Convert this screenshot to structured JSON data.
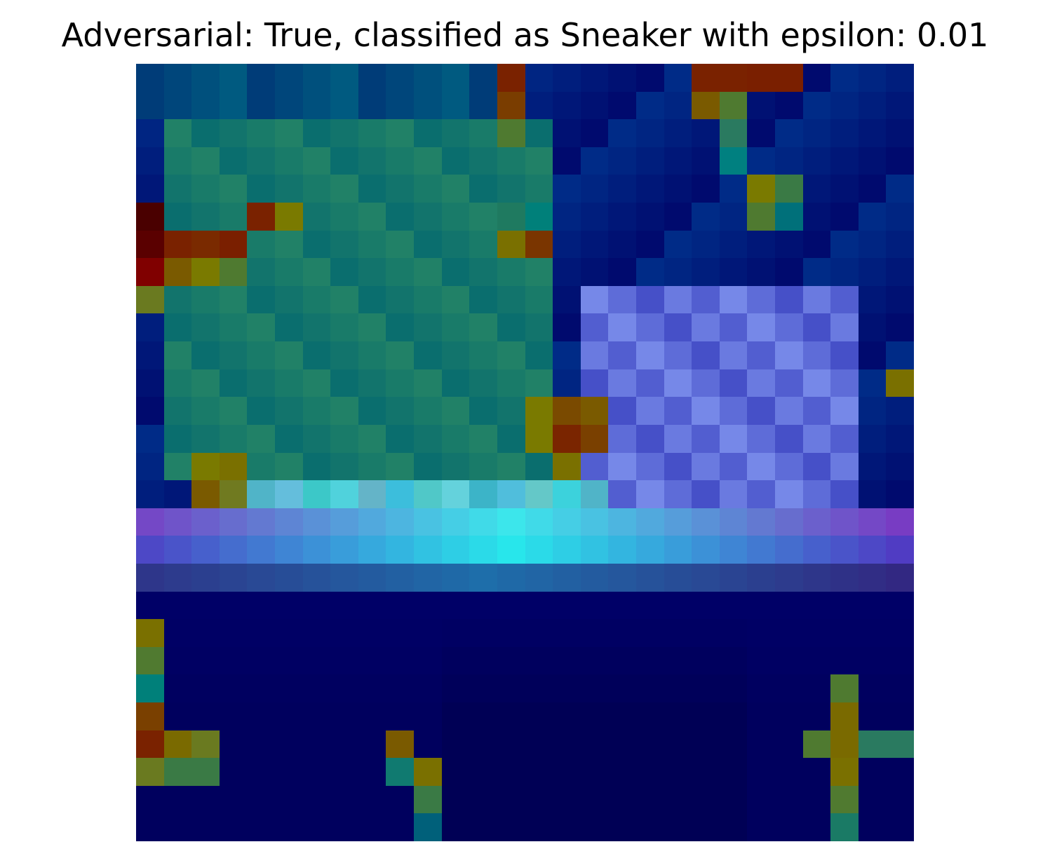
{
  "title": "Adversarial: True, classified as Sneaker with epsilon: 0.01",
  "image": {
    "rows": 28,
    "cols": 28,
    "colormap": "jet-overlay",
    "base_color": "#000a80",
    "hot_cells": [
      {
        "r": 0,
        "c": 13,
        "color": "#7a2200"
      },
      {
        "r": 0,
        "c": 20,
        "color": "#7a2200"
      },
      {
        "r": 0,
        "c": 21,
        "color": "#7a2200"
      },
      {
        "r": 0,
        "c": 22,
        "color": "#7a1f00"
      },
      {
        "r": 0,
        "c": 23,
        "color": "#7a1f00"
      },
      {
        "r": 1,
        "c": 13,
        "color": "#7a3d00"
      },
      {
        "r": 1,
        "c": 20,
        "color": "#7a5a00"
      },
      {
        "r": 1,
        "c": 21,
        "color": "#4f7a30"
      },
      {
        "r": 2,
        "c": 13,
        "color": "#4f7a30"
      },
      {
        "r": 2,
        "c": 21,
        "color": "#2a7a60"
      },
      {
        "r": 3,
        "c": 21,
        "color": "#008080"
      },
      {
        "r": 4,
        "c": 22,
        "color": "#7a7a00"
      },
      {
        "r": 4,
        "c": 23,
        "color": "#3a7a45"
      },
      {
        "r": 5,
        "c": 0,
        "color": "#4a0000"
      },
      {
        "r": 5,
        "c": 4,
        "color": "#7a2200"
      },
      {
        "r": 5,
        "c": 5,
        "color": "#7a7a00"
      },
      {
        "r": 5,
        "c": 13,
        "color": "#1f7a60"
      },
      {
        "r": 5,
        "c": 14,
        "color": "#00807a"
      },
      {
        "r": 5,
        "c": 22,
        "color": "#4f7a30"
      },
      {
        "r": 5,
        "c": 23,
        "color": "#00707a"
      },
      {
        "r": 6,
        "c": 0,
        "color": "#5a0000"
      },
      {
        "r": 6,
        "c": 1,
        "color": "#7a2200"
      },
      {
        "r": 6,
        "c": 2,
        "color": "#7a2a00"
      },
      {
        "r": 6,
        "c": 3,
        "color": "#7a1f00"
      },
      {
        "r": 6,
        "c": 13,
        "color": "#7a7000"
      },
      {
        "r": 6,
        "c": 14,
        "color": "#7a3500"
      },
      {
        "r": 7,
        "c": 0,
        "color": "#800000"
      },
      {
        "r": 7,
        "c": 1,
        "color": "#7a5a00"
      },
      {
        "r": 7,
        "c": 2,
        "color": "#7a7a00"
      },
      {
        "r": 7,
        "c": 3,
        "color": "#4f7a30"
      },
      {
        "r": 8,
        "c": 0,
        "color": "#6a7a20"
      },
      {
        "r": 11,
        "c": 27,
        "color": "#7a7000"
      },
      {
        "r": 12,
        "c": 14,
        "color": "#7a7a00"
      },
      {
        "r": 12,
        "c": 15,
        "color": "#7a4a00"
      },
      {
        "r": 12,
        "c": 16,
        "color": "#7a5a00"
      },
      {
        "r": 13,
        "c": 14,
        "color": "#7a7a00"
      },
      {
        "r": 13,
        "c": 15,
        "color": "#7a2500"
      },
      {
        "r": 13,
        "c": 16,
        "color": "#7a4000"
      },
      {
        "r": 14,
        "c": 2,
        "color": "#7a7a00"
      },
      {
        "r": 14,
        "c": 3,
        "color": "#7a7000"
      },
      {
        "r": 14,
        "c": 15,
        "color": "#7a7000"
      },
      {
        "r": 15,
        "c": 2,
        "color": "#7a5a00"
      },
      {
        "r": 15,
        "c": 3,
        "color": "#707a20"
      },
      {
        "r": 20,
        "c": 0,
        "color": "#7a7000"
      },
      {
        "r": 21,
        "c": 0,
        "color": "#507a30"
      },
      {
        "r": 22,
        "c": 0,
        "color": "#00807a"
      },
      {
        "r": 22,
        "c": 25,
        "color": "#4f7a30"
      },
      {
        "r": 23,
        "c": 0,
        "color": "#7a4000"
      },
      {
        "r": 23,
        "c": 25,
        "color": "#7a6a00"
      },
      {
        "r": 24,
        "c": 0,
        "color": "#7a2200"
      },
      {
        "r": 24,
        "c": 1,
        "color": "#7a6a00"
      },
      {
        "r": 24,
        "c": 2,
        "color": "#6a7a20"
      },
      {
        "r": 24,
        "c": 9,
        "color": "#7a5a00"
      },
      {
        "r": 24,
        "c": 24,
        "color": "#4f7a30"
      },
      {
        "r": 24,
        "c": 25,
        "color": "#7a6a00"
      },
      {
        "r": 24,
        "c": 26,
        "color": "#2a7a60"
      },
      {
        "r": 24,
        "c": 27,
        "color": "#2a7a60"
      },
      {
        "r": 25,
        "c": 0,
        "color": "#6a7a20"
      },
      {
        "r": 25,
        "c": 1,
        "color": "#3a7a45"
      },
      {
        "r": 25,
        "c": 2,
        "color": "#3a7a45"
      },
      {
        "r": 25,
        "c": 9,
        "color": "#107a70"
      },
      {
        "r": 25,
        "c": 10,
        "color": "#7a7000"
      },
      {
        "r": 25,
        "c": 25,
        "color": "#7a7000"
      },
      {
        "r": 26,
        "c": 10,
        "color": "#3a7a45"
      },
      {
        "r": 26,
        "c": 25,
        "color": "#507a30"
      },
      {
        "r": 27,
        "c": 10,
        "color": "#00607a"
      },
      {
        "r": 27,
        "c": 25,
        "color": "#1a7a65"
      }
    ]
  }
}
